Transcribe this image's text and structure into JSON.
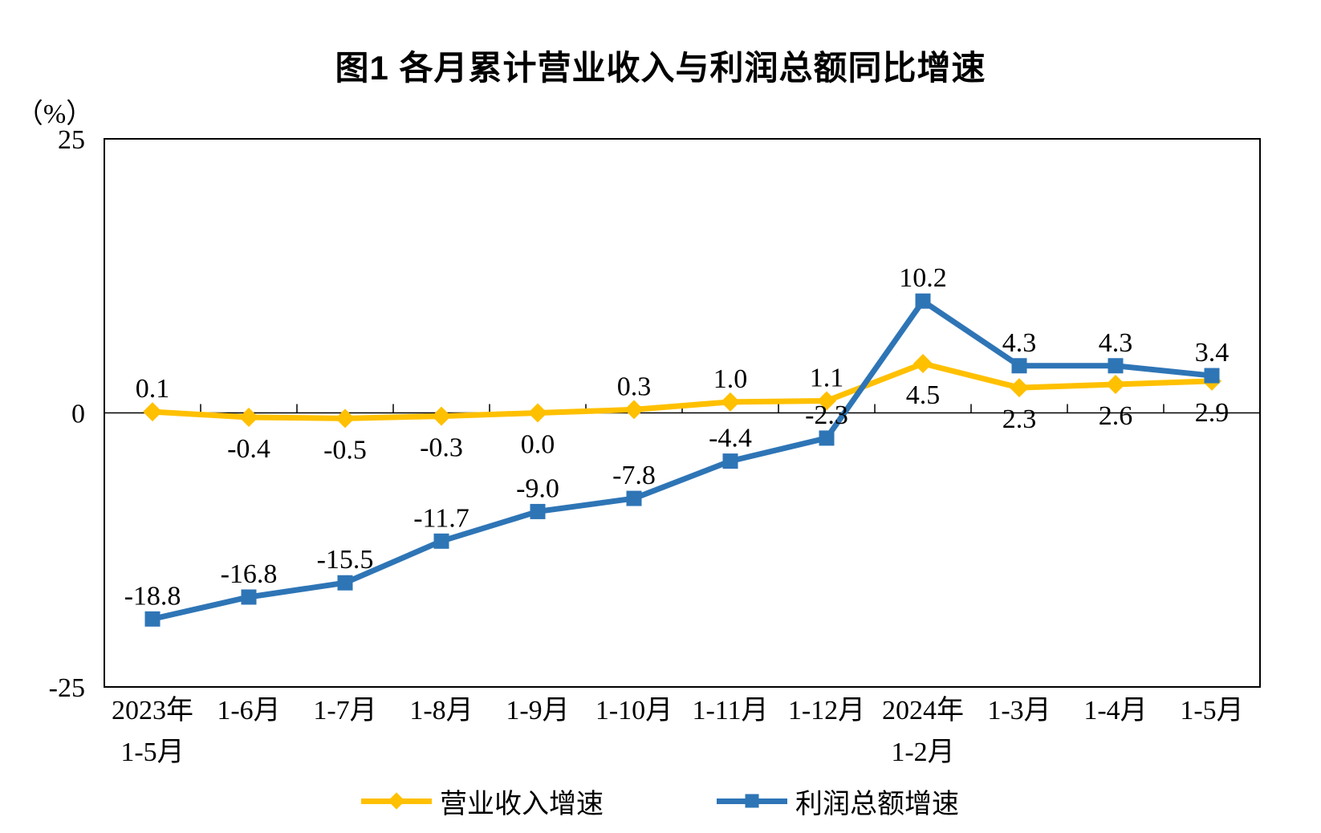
{
  "page": {
    "title": "图1 各月累计营业收入与利润总额同比增速"
  },
  "legend": {
    "items": [
      {
        "id": "revenue",
        "label": "营业收入增速",
        "color": "#FFC000",
        "marker": "diamond"
      },
      {
        "id": "profit",
        "label": "利润总额增速",
        "color": "#2E75B6",
        "marker": "square"
      }
    ]
  },
  "chart_data": {
    "type": "line",
    "title": "图1 各月累计营业收入与利润总额同比增速",
    "ylabel": "（%）",
    "xlabel": "",
    "ylim": [
      -25,
      25
    ],
    "y_ticks": [
      25,
      0,
      -25
    ],
    "grid": false,
    "legend_position": "bottom",
    "categories": [
      "2023年\n1-5月",
      "1-6月",
      "1-7月",
      "1-8月",
      "1-9月",
      "1-10月",
      "1-11月",
      "1-12月",
      "2024年\n1-2月",
      "1-3月",
      "1-4月",
      "1-5月"
    ],
    "series": [
      {
        "id": "revenue",
        "name": "营业收入增速",
        "color": "#FFC000",
        "marker": "diamond",
        "values": [
          0.1,
          -0.4,
          -0.5,
          -0.3,
          0.0,
          0.3,
          1.0,
          1.1,
          4.5,
          2.3,
          2.6,
          2.9
        ],
        "label_side": [
          "above",
          "below",
          "below",
          "below",
          "below",
          "above",
          "above",
          "above",
          "below",
          "below",
          "below",
          "below"
        ]
      },
      {
        "id": "profit",
        "name": "利润总额增速",
        "color": "#2E75B6",
        "marker": "square",
        "values": [
          -18.8,
          -16.8,
          -15.5,
          -11.7,
          -9.0,
          -7.8,
          -4.4,
          -2.3,
          10.2,
          4.3,
          4.3,
          3.4
        ],
        "label_side": [
          "above",
          "above",
          "above",
          "above",
          "above",
          "above",
          "above",
          "above",
          "above",
          "above",
          "above",
          "above"
        ]
      }
    ]
  }
}
